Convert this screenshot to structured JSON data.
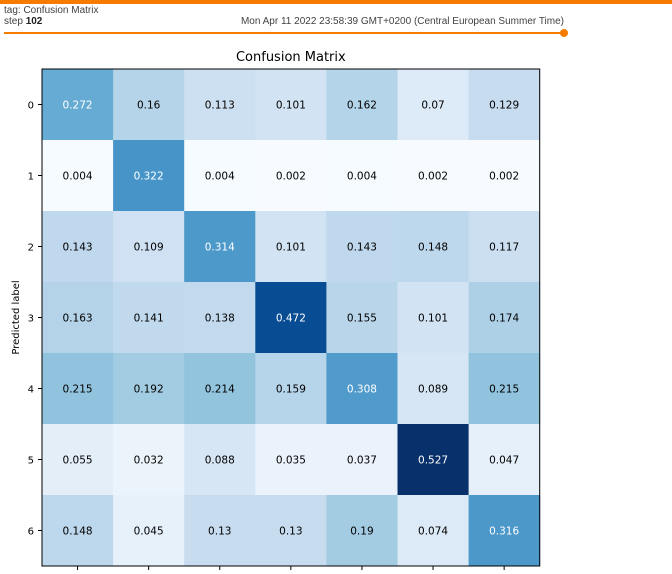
{
  "card": {
    "tag_text": "tag: Confusion Matrix",
    "step_prefix": "step",
    "step_value": "102",
    "timestamp": "Mon Apr 11 2022 23:58:39 GMT+0200 (Central European Summer Time)",
    "accent_color": "#f57c00"
  },
  "chart_data": {
    "type": "heatmap",
    "title": "Confusion Matrix",
    "ylabel": "Predicted label",
    "xlabel": "",
    "y_ticks": [
      "0",
      "1",
      "2",
      "3",
      "4",
      "5",
      "6"
    ],
    "x_ticks": [
      "",
      "",
      "",
      "",
      "",
      "",
      ""
    ],
    "colormap": "Blues",
    "grid": false,
    "matrix": [
      [
        "0.272",
        "0.16",
        "0.113",
        "0.101",
        "0.162",
        "0.07",
        "0.129"
      ],
      [
        "0.004",
        "0.322",
        "0.004",
        "0.002",
        "0.004",
        "0.002",
        "0.002"
      ],
      [
        "0.143",
        "0.109",
        "0.314",
        "0.101",
        "0.143",
        "0.148",
        "0.117"
      ],
      [
        "0.163",
        "0.141",
        "0.138",
        "0.472",
        "0.155",
        "0.101",
        "0.174"
      ],
      [
        "0.215",
        "0.192",
        "0.214",
        "0.159",
        "0.308",
        "0.089",
        "0.215"
      ],
      [
        "0.055",
        "0.032",
        "0.088",
        "0.035",
        "0.037",
        "0.527",
        "0.047"
      ],
      [
        "0.148",
        "0.045",
        "0.13",
        "0.13",
        "0.19",
        "0.074",
        "0.316"
      ]
    ]
  }
}
